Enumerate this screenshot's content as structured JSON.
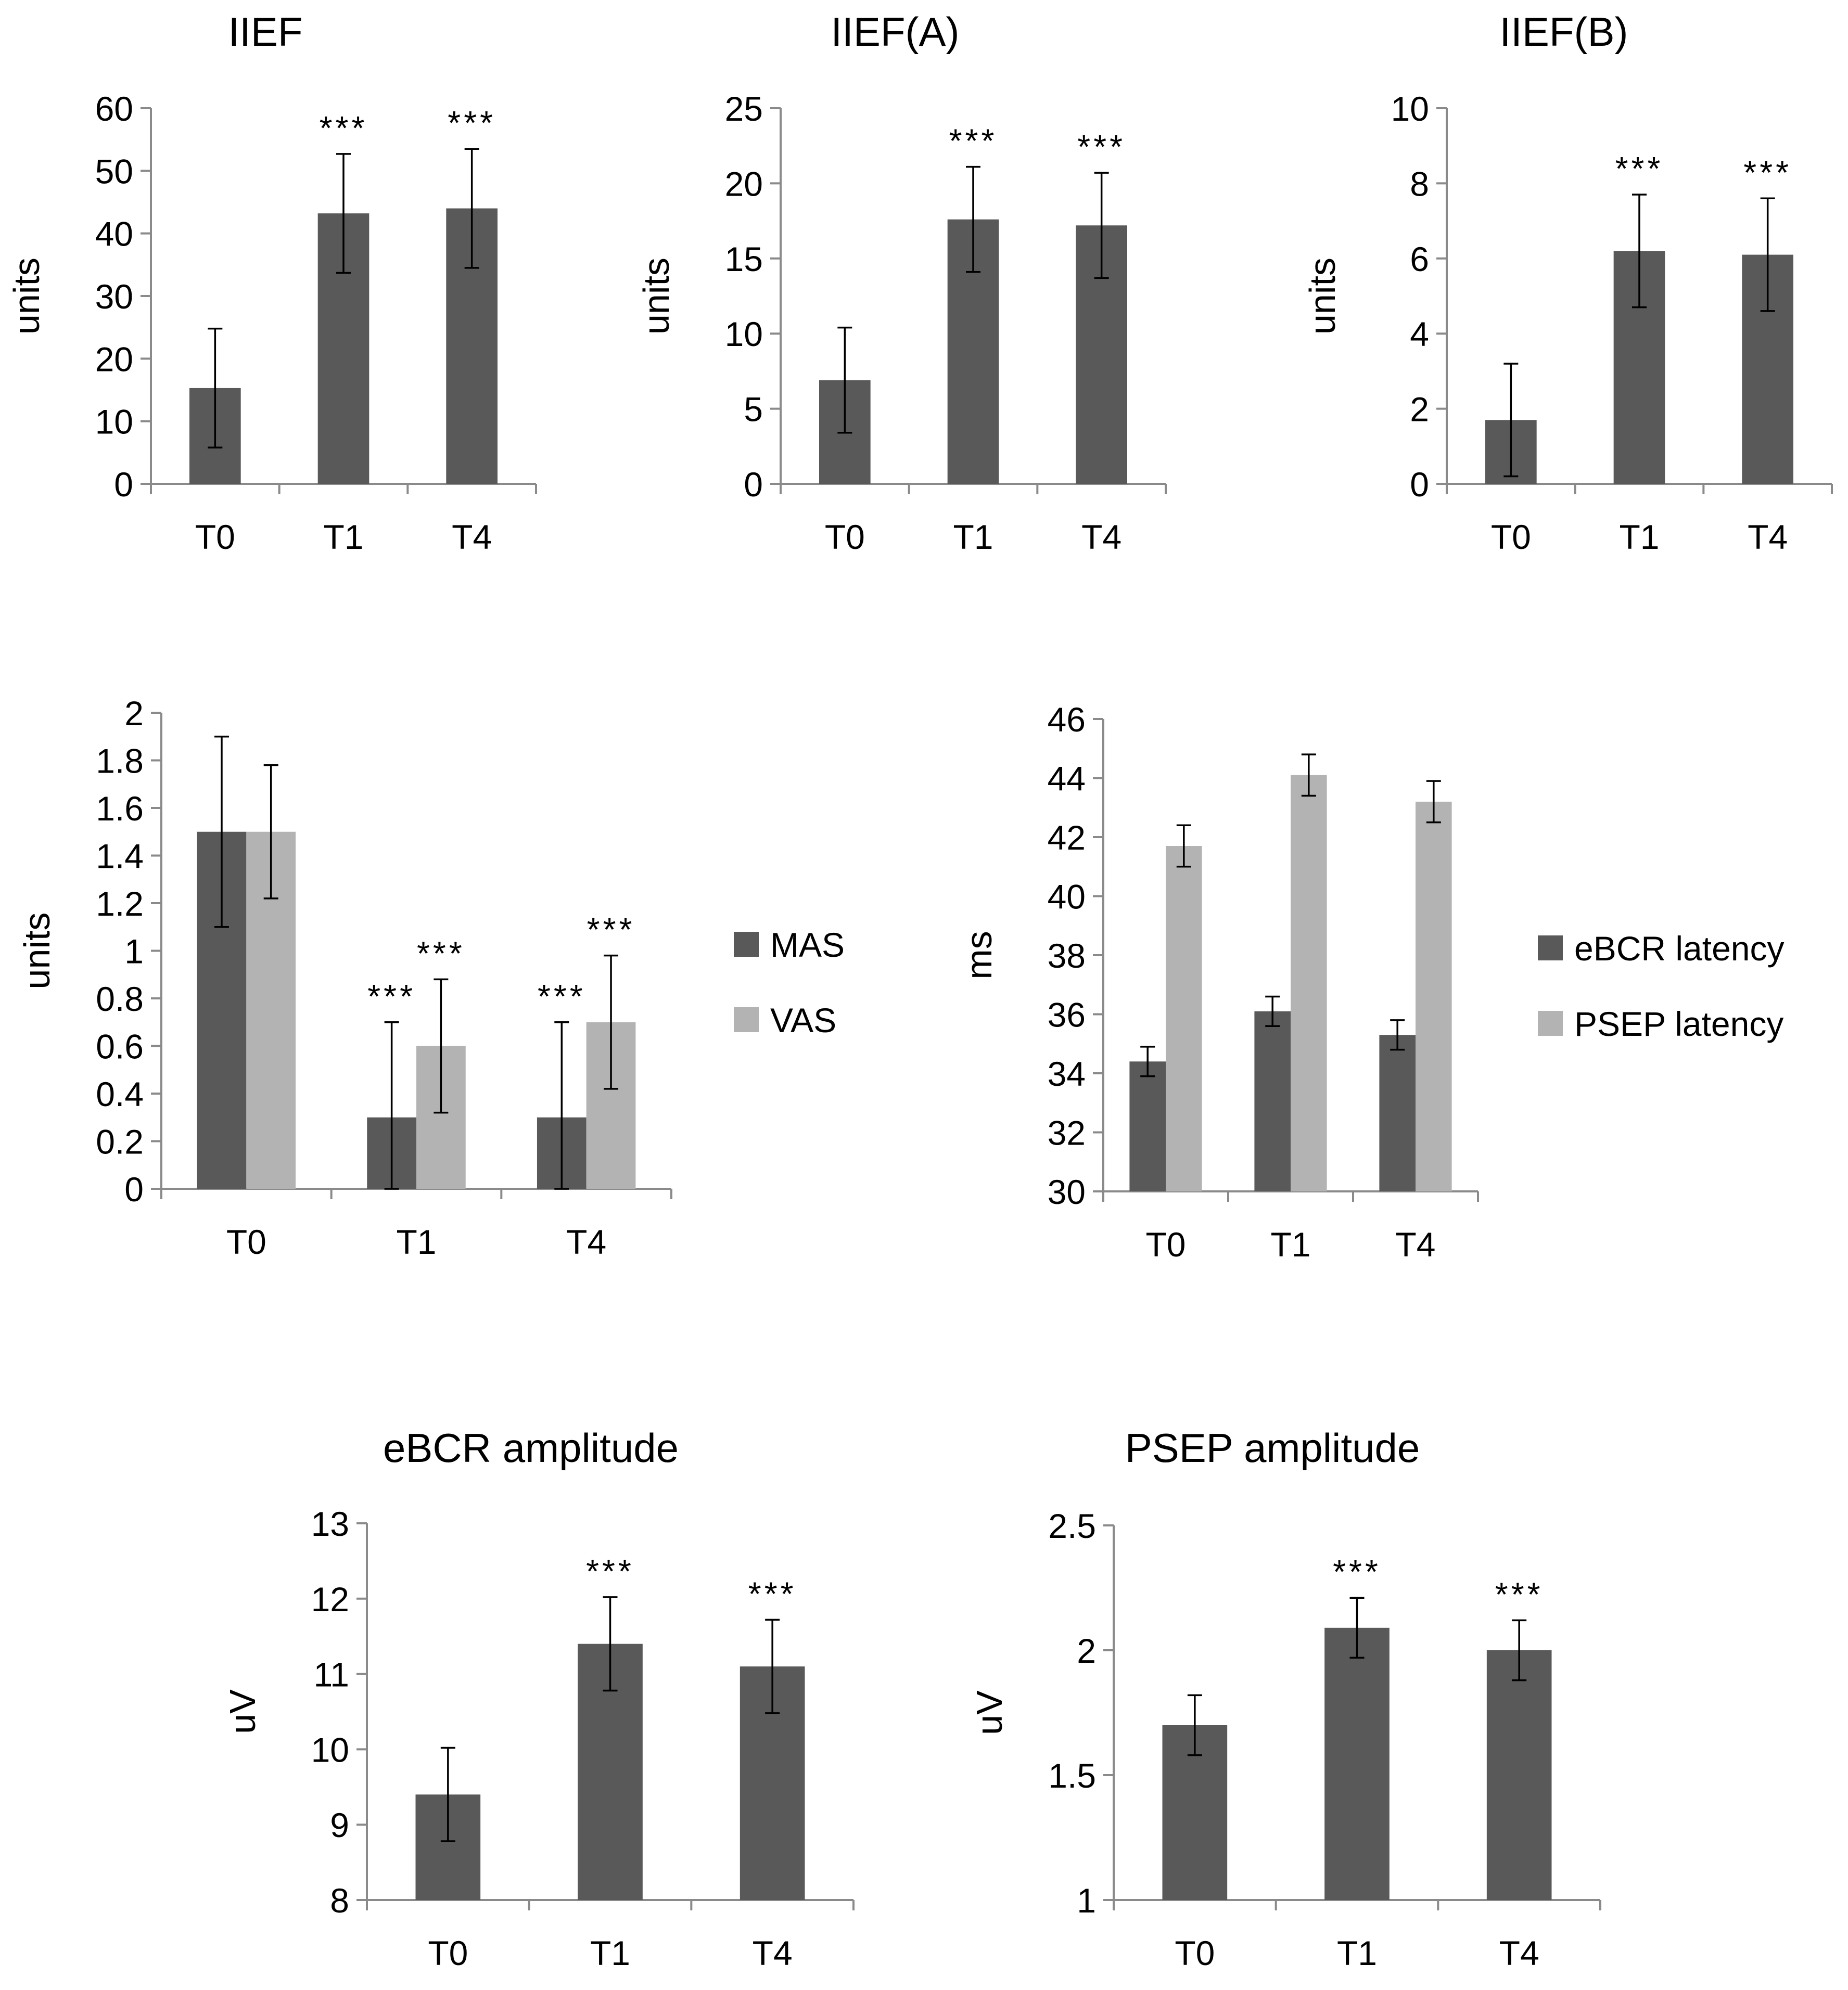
{
  "figure": {
    "colors": {
      "dark": "#595959",
      "light": "#b3b3b3",
      "axis": "#8a8a8a",
      "text": "#000000"
    }
  },
  "chart_data": [
    {
      "id": "iief",
      "type": "bar",
      "title": "IIEF",
      "ylabel": "units",
      "categories": [
        "T0",
        "T1",
        "T4"
      ],
      "ylim": [
        0,
        60
      ],
      "ticks": [
        0,
        10,
        20,
        30,
        40,
        50,
        60
      ],
      "tick_labels": [
        "0",
        "10",
        "20",
        "30",
        "40",
        "50",
        "60"
      ],
      "series": [
        {
          "name": "IIEF",
          "color": "dark",
          "values": [
            15.3,
            43.2,
            44.0
          ],
          "errors": [
            9.5,
            9.5,
            9.5
          ],
          "sig": [
            "",
            "***",
            "***"
          ]
        }
      ]
    },
    {
      "id": "iiefa",
      "type": "bar",
      "title": "IIEF(A)",
      "ylabel": "units",
      "categories": [
        "T0",
        "T1",
        "T4"
      ],
      "ylim": [
        0,
        25
      ],
      "ticks": [
        0,
        5,
        10,
        15,
        20,
        25
      ],
      "tick_labels": [
        "0",
        "5",
        "10",
        "15",
        "20",
        "25"
      ],
      "series": [
        {
          "name": "IIEF(A)",
          "color": "dark",
          "values": [
            6.9,
            17.6,
            17.2
          ],
          "errors": [
            3.5,
            3.5,
            3.5
          ],
          "sig": [
            "",
            "***",
            "***"
          ]
        }
      ]
    },
    {
      "id": "iiefb",
      "type": "bar",
      "title": "IIEF(B)",
      "ylabel": "units",
      "categories": [
        "T0",
        "T1",
        "T4"
      ],
      "ylim": [
        0,
        10
      ],
      "ticks": [
        0,
        2,
        4,
        6,
        8,
        10
      ],
      "tick_labels": [
        "0",
        "2",
        "4",
        "6",
        "8",
        "10"
      ],
      "series": [
        {
          "name": "IIEF(B)",
          "color": "dark",
          "values": [
            1.7,
            6.2,
            6.1
          ],
          "errors": [
            1.5,
            1.5,
            1.5
          ],
          "sig": [
            "",
            "***",
            "***"
          ]
        }
      ]
    },
    {
      "id": "masvas",
      "type": "bar",
      "title": "",
      "ylabel": "units",
      "categories": [
        "T0",
        "T1",
        "T4"
      ],
      "ylim": [
        0,
        2
      ],
      "ticks": [
        0,
        0.2,
        0.4,
        0.6,
        0.8,
        1,
        1.2,
        1.4,
        1.6,
        1.8,
        2
      ],
      "tick_labels": [
        "0",
        "0.2",
        "0.4",
        "0.6",
        "0.8",
        "1",
        "1.2",
        "1.4",
        "1.6",
        "1.8",
        "2"
      ],
      "legend": "right",
      "series": [
        {
          "name": "MAS",
          "color": "dark",
          "values": [
            1.5,
            0.3,
            0.3
          ],
          "errors": [
            0.4,
            0.4,
            0.4
          ],
          "sig": [
            "",
            "***",
            "***"
          ]
        },
        {
          "name": "VAS",
          "color": "light",
          "values": [
            1.5,
            0.6,
            0.7
          ],
          "errors": [
            0.28,
            0.28,
            0.28
          ],
          "sig": [
            "",
            "***",
            "***"
          ]
        }
      ]
    },
    {
      "id": "latency",
      "type": "bar",
      "title": "",
      "ylabel": "ms",
      "categories": [
        "T0",
        "T1",
        "T4"
      ],
      "ylim": [
        30,
        46
      ],
      "ticks": [
        30,
        32,
        34,
        36,
        38,
        40,
        42,
        44,
        46
      ],
      "tick_labels": [
        "30",
        "32",
        "34",
        "36",
        "38",
        "40",
        "42",
        "44",
        "46"
      ],
      "legend": "right",
      "series": [
        {
          "name": "eBCR latency",
          "color": "dark",
          "values": [
            34.4,
            36.1,
            35.3
          ],
          "errors": [
            0.5,
            0.5,
            0.5
          ],
          "sig": [
            "",
            "",
            ""
          ]
        },
        {
          "name": "PSEP latency",
          "color": "light",
          "values": [
            41.7,
            44.1,
            43.2
          ],
          "errors": [
            0.7,
            0.7,
            0.7
          ],
          "sig": [
            "",
            "",
            ""
          ]
        }
      ]
    },
    {
      "id": "ebcramp",
      "type": "bar",
      "title": "eBCR amplitude",
      "ylabel": "uV",
      "categories": [
        "T0",
        "T1",
        "T4"
      ],
      "ylim": [
        8,
        13
      ],
      "ticks": [
        8,
        9,
        10,
        11,
        12,
        13
      ],
      "tick_labels": [
        "8",
        "9",
        "10",
        "11",
        "12",
        "13"
      ],
      "series": [
        {
          "name": "eBCR amplitude",
          "color": "dark",
          "values": [
            9.4,
            11.4,
            11.1
          ],
          "errors": [
            0.62,
            0.62,
            0.62
          ],
          "sig": [
            "",
            "***",
            "***"
          ]
        }
      ]
    },
    {
      "id": "psepamp",
      "type": "bar",
      "title": "PSEP amplitude",
      "ylabel": "uV",
      "categories": [
        "T0",
        "T1",
        "T4"
      ],
      "ylim": [
        1,
        2.5
      ],
      "ticks": [
        1,
        1.5,
        2,
        2.5
      ],
      "tick_labels": [
        "1",
        "1.5",
        "2",
        "2.5"
      ],
      "series": [
        {
          "name": "PSEP amplitude",
          "color": "dark",
          "values": [
            1.7,
            2.09,
            2.0
          ],
          "errors": [
            0.12,
            0.12,
            0.12
          ],
          "sig": [
            "",
            "***",
            "***"
          ]
        }
      ]
    }
  ]
}
